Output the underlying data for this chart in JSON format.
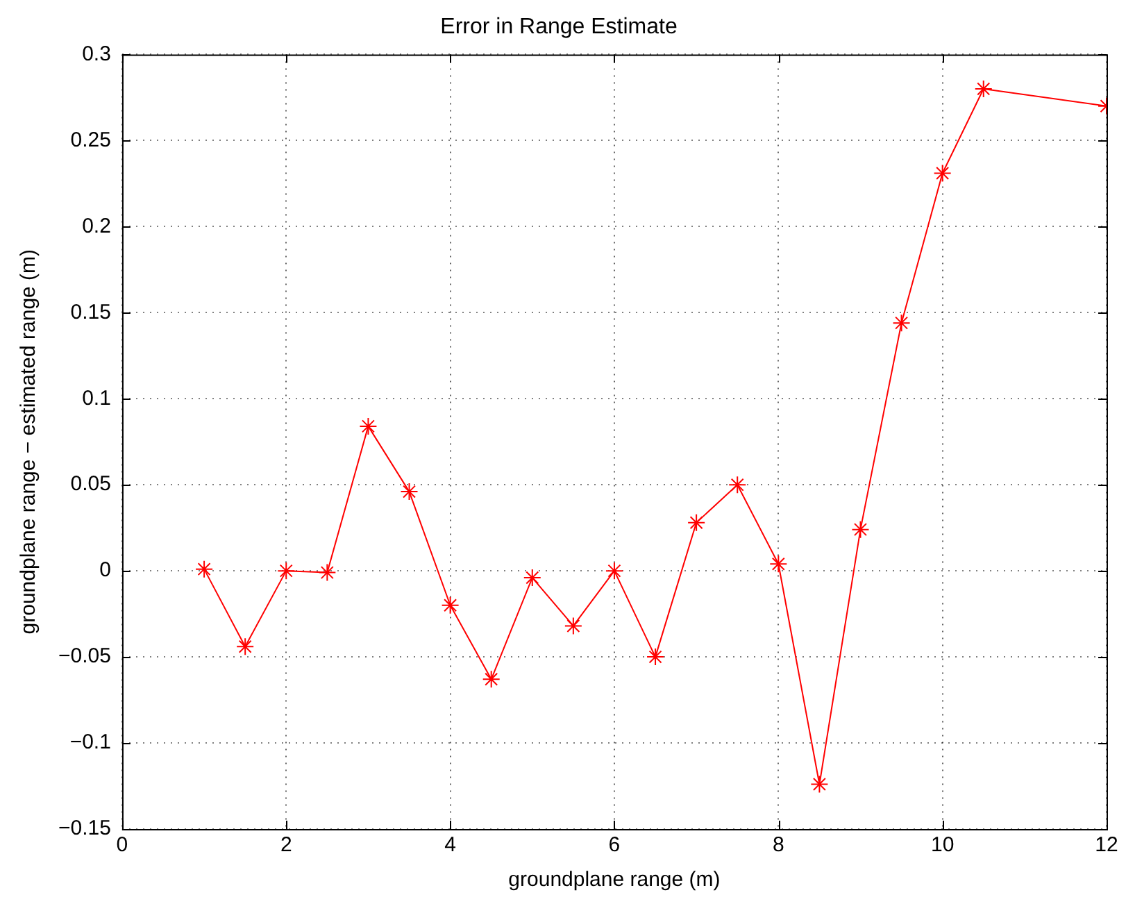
{
  "chart_data": {
    "type": "line",
    "title": "Error in Range Estimate",
    "xlabel": "groundplane range (m)",
    "ylabel": "groundplane range − estimated range (m)",
    "x": [
      1,
      1.5,
      2,
      2.5,
      3,
      3.5,
      4,
      4.5,
      5,
      5.5,
      6,
      6.5,
      7,
      7.5,
      8,
      8.5,
      9,
      9.5,
      10,
      10.5,
      12
    ],
    "series": [
      {
        "color": "#ff0000",
        "values": [
          0.001,
          -0.044,
          0,
          -0.001,
          0.084,
          0.046,
          -0.02,
          -0.063,
          -0.004,
          -0.032,
          0,
          -0.05,
          0.028,
          0.05,
          0.004,
          -0.124,
          0.024,
          0.144,
          0.231,
          0.28,
          0.27
        ]
      }
    ],
    "xlim": [
      0,
      12
    ],
    "xticks": [
      0,
      2,
      4,
      6,
      8,
      10,
      12
    ],
    "ylim": [
      -0.15,
      0.3
    ],
    "yticks": [
      -0.15,
      -0.1,
      -0.05,
      0,
      0.05,
      0.1,
      0.15,
      0.2,
      0.25,
      0.3
    ],
    "grid": true,
    "marker": "cross",
    "line_style": "solid",
    "legend": false
  }
}
